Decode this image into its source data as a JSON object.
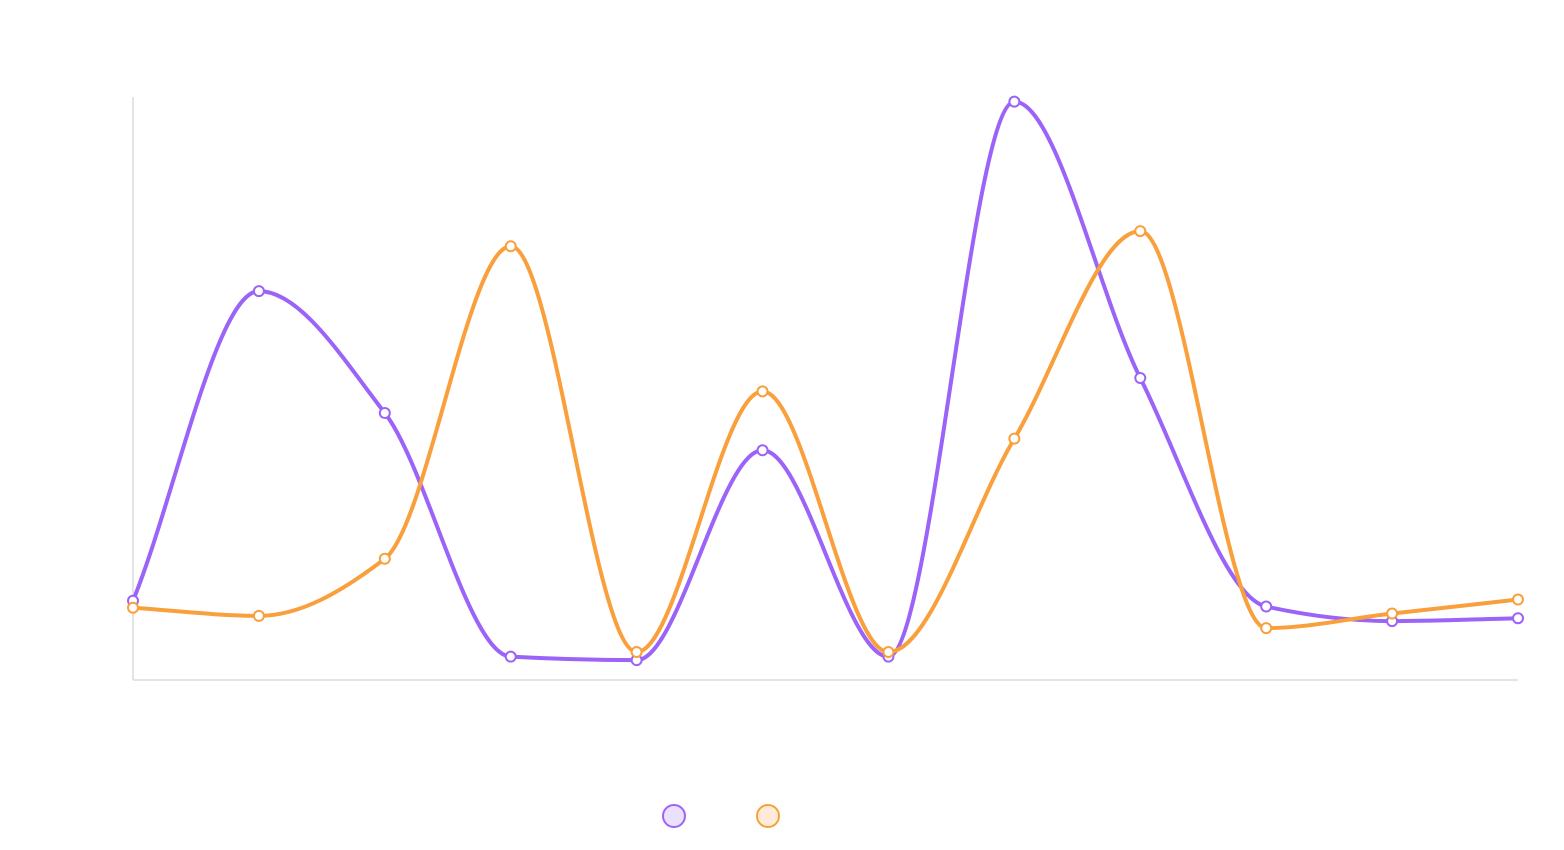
{
  "chart_data": {
    "type": "line",
    "title": "",
    "xlabel": "",
    "ylabel": "",
    "x": [
      0,
      1,
      2,
      3,
      4,
      5,
      6,
      7,
      8,
      9,
      10,
      11
    ],
    "ylim": [
      0,
      100
    ],
    "grid": false,
    "smooth": true,
    "legend_position": "bottom",
    "series": [
      {
        "color": "#9b63f7",
        "values": [
          13.6,
          66.7,
          45.8,
          4.0,
          3.4,
          39.4,
          4.0,
          99.2,
          51.8,
          12.6,
          10.1,
          10.6
        ]
      },
      {
        "color": "#f99f3c",
        "values": [
          12.4,
          11.0,
          20.8,
          74.4,
          4.8,
          49.5,
          4.8,
          41.4,
          77.0,
          8.9,
          11.4,
          13.8
        ]
      }
    ]
  }
}
